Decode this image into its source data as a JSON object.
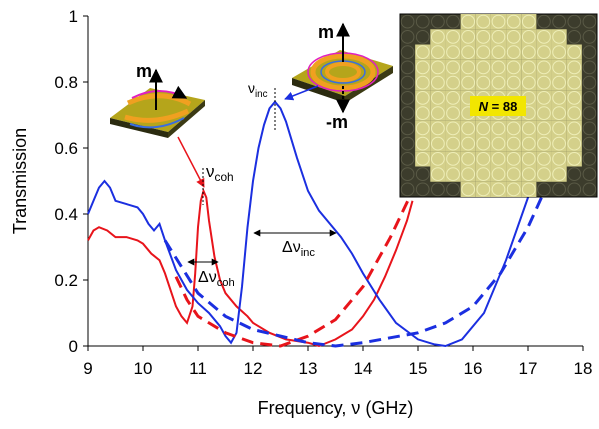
{
  "chart_data": {
    "type": "line",
    "xlabel": "Frequency, ν (GHz)",
    "ylabel": "Transmission",
    "xlim": [
      9,
      18
    ],
    "xticks": [
      9,
      10,
      11,
      12,
      13,
      14,
      15,
      16,
      17,
      18
    ],
    "ylim": [
      0,
      1
    ],
    "yticks": [
      0,
      0.2,
      0.4,
      0.6,
      0.8,
      1
    ],
    "series": [
      {
        "color": "#e8141b",
        "dashed": false,
        "x": [
          9,
          9.1,
          9.2,
          9.35,
          9.5,
          9.7,
          9.9,
          10.0,
          10.15,
          10.3,
          10.4,
          10.5,
          10.6,
          10.7,
          10.8,
          10.9,
          10.95,
          11.0,
          11.05,
          11.1,
          11.15,
          11.2,
          11.3,
          11.4,
          11.5,
          11.7,
          11.9,
          12.0,
          12.3,
          12.6,
          13.0,
          13.2,
          13.5,
          13.8,
          14.0,
          14.2,
          14.4,
          14.6,
          14.8,
          14.9
        ],
        "values": [
          0.32,
          0.35,
          0.36,
          0.35,
          0.33,
          0.33,
          0.32,
          0.31,
          0.28,
          0.26,
          0.22,
          0.17,
          0.12,
          0.09,
          0.07,
          0.12,
          0.22,
          0.36,
          0.44,
          0.47,
          0.45,
          0.38,
          0.27,
          0.2,
          0.16,
          0.12,
          0.09,
          0.07,
          0.04,
          0.02,
          0.01,
          0.0,
          0.02,
          0.05,
          0.09,
          0.14,
          0.21,
          0.29,
          0.38,
          0.44
        ]
      },
      {
        "color": "#1b2fe0",
        "dashed": false,
        "x": [
          9,
          9.1,
          9.2,
          9.3,
          9.4,
          9.5,
          9.7,
          9.9,
          10.0,
          10.1,
          10.2,
          10.3,
          10.4,
          10.6,
          10.8,
          11.0,
          11.2,
          11.4,
          11.5,
          11.6,
          11.7,
          11.8,
          11.9,
          12.0,
          12.1,
          12.2,
          12.3,
          12.4,
          12.5,
          12.6,
          12.8,
          13.0,
          13.2,
          13.4,
          13.6,
          13.8,
          14.0,
          14.3,
          14.6,
          15.0,
          15.3,
          15.5,
          15.8,
          16.2,
          16.6,
          17.0,
          17.2
        ],
        "values": [
          0.4,
          0.44,
          0.48,
          0.5,
          0.48,
          0.44,
          0.43,
          0.42,
          0.4,
          0.37,
          0.35,
          0.37,
          0.32,
          0.23,
          0.17,
          0.13,
          0.1,
          0.06,
          0.03,
          0.01,
          0.04,
          0.18,
          0.36,
          0.5,
          0.6,
          0.67,
          0.72,
          0.74,
          0.72,
          0.68,
          0.57,
          0.47,
          0.41,
          0.37,
          0.33,
          0.28,
          0.22,
          0.14,
          0.07,
          0.02,
          0.005,
          0.0,
          0.02,
          0.1,
          0.26,
          0.45,
          0.55
        ]
      },
      {
        "color": "#e8141b",
        "dashed": true,
        "x": [
          10.6,
          10.8,
          11.0,
          11.5,
          12.0,
          12.5,
          13.0,
          13.5,
          14.0,
          14.5,
          14.9
        ],
        "values": [
          0.21,
          0.14,
          0.09,
          0.04,
          0.01,
          0.0,
          0.03,
          0.08,
          0.18,
          0.33,
          0.47
        ]
      },
      {
        "color": "#1b2fe0",
        "dashed": true,
        "x": [
          10.4,
          10.7,
          11.0,
          11.5,
          12.0,
          12.5,
          13.0,
          13.5,
          14.0,
          15.0,
          15.5,
          16.0,
          16.5,
          17.0,
          17.3
        ],
        "values": [
          0.32,
          0.24,
          0.16,
          0.09,
          0.05,
          0.03,
          0.01,
          0.0,
          0.01,
          0.04,
          0.07,
          0.12,
          0.22,
          0.36,
          0.47
        ]
      }
    ],
    "annotations": {
      "nu_coh": {
        "text": "ν",
        "sub": "coh"
      },
      "dnu_coh": {
        "text": "Δν",
        "sub": "coh"
      },
      "nu_inc": {
        "text": "ν",
        "sub": "inc"
      },
      "dnu_inc": {
        "text": "Δν",
        "sub": "inc"
      },
      "m_left": "m",
      "m_right": "m",
      "minus_m": "-m",
      "n_label": {
        "italic": "N",
        "text": " = 88"
      }
    }
  }
}
